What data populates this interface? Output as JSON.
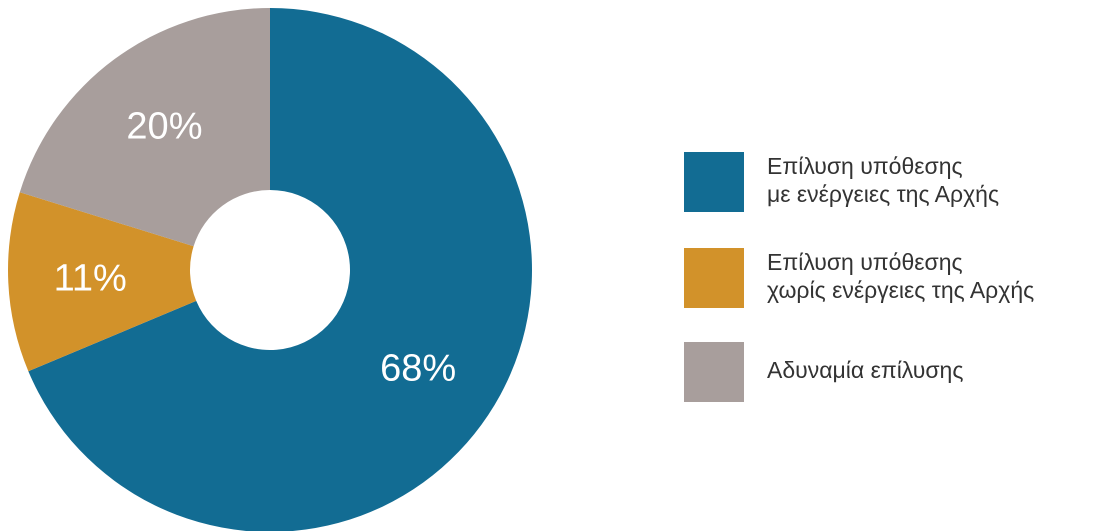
{
  "chart_data": {
    "type": "pie",
    "title": "",
    "donut": true,
    "legend_position": "right",
    "series": [
      {
        "name": "Επίλυση υπόθεσης με ενέργειες της Αρχής",
        "legend_lines": [
          "Επίλυση υπόθεσης",
          "με ενέργειες της Αρχής"
        ],
        "value": 68,
        "label": "68%",
        "color": "#126c93"
      },
      {
        "name": "Επίλυση υπόθεσης χωρίς ενέργειες της Αρχής",
        "legend_lines": [
          "Επίλυση υπόθεσης",
          "χωρίς ενέργειες της Αρχής"
        ],
        "value": 11,
        "label": "11%",
        "color": "#d2922a"
      },
      {
        "name": "Αδυναμία επίλυσης",
        "legend_lines": [
          "Αδυναμία επίλυσης"
        ],
        "value": 20,
        "label": "20%",
        "color": "#a89e9c"
      }
    ]
  }
}
